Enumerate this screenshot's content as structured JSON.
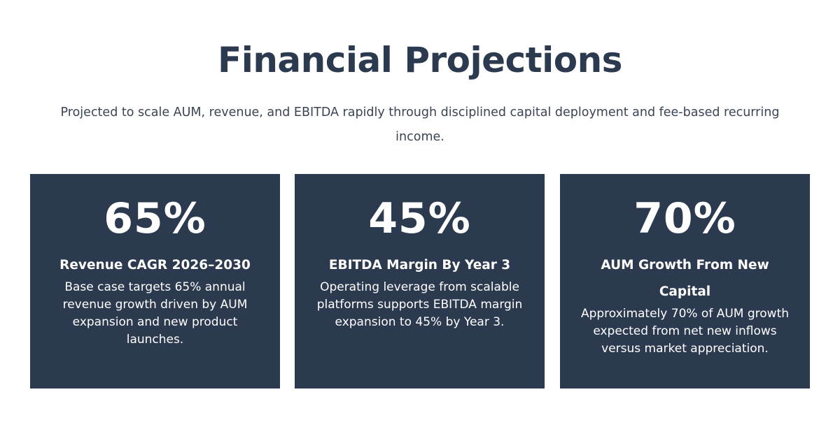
{
  "header": {
    "title": "Financial Projections",
    "subtitle": "Projected to scale AUM, revenue, and EBITDA rapidly through disciplined capital deployment and fee-based recurring income."
  },
  "cards": [
    {
      "stat": "65%",
      "heading": "Revenue CAGR 2026–2030",
      "text": "Base case targets 65% annual revenue growth driven by AUM expansion and new product launches."
    },
    {
      "stat": "45%",
      "heading": "EBITDA Margin By Year 3",
      "text": "Operating leverage from scalable platforms supports EBITDA margin expansion to 45% by Year 3."
    },
    {
      "stat": "70%",
      "heading": "AUM Growth From New Capital",
      "text": "Approximately 70% of AUM growth expected from net new inflows versus market appreciation."
    }
  ],
  "colors": {
    "card_background": "#2c3a4f",
    "title": "#2c3a4f",
    "card_text": "#ffffff"
  }
}
